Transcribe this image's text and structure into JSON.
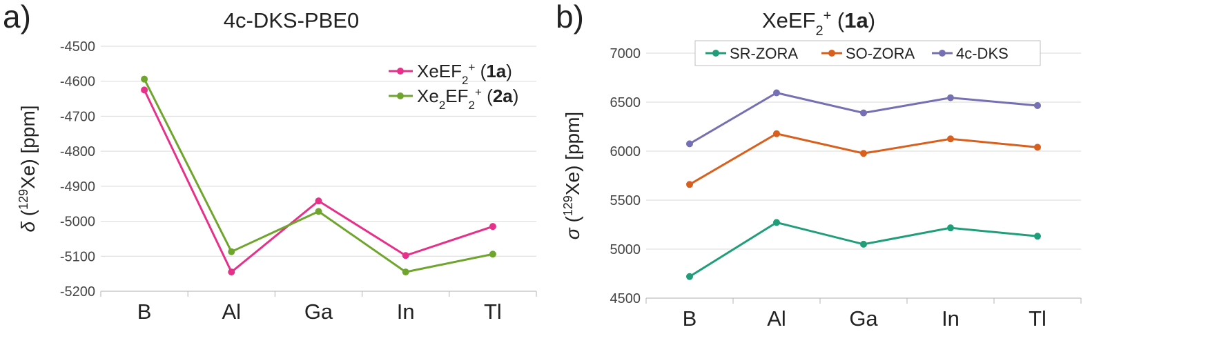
{
  "chart_data": [
    {
      "panel_label": "a)",
      "type": "line",
      "title": "4c-DKS-PBE0",
      "ylabel": {
        "prefix": "δ (",
        "sup": "129",
        "suffix": "Xe) [ppm]"
      },
      "categories": [
        "B",
        "Al",
        "Ga",
        "In",
        "Tl"
      ],
      "ylim": [
        -5200,
        -4500
      ],
      "yticks": [
        -4500,
        -4600,
        -4700,
        -4800,
        -4900,
        -5000,
        -5100,
        -5200
      ],
      "grid": true,
      "legend_position": "top-right",
      "series": [
        {
          "name": "XeEF2+ (1a)",
          "legend": [
            {
              "t": "XeEF"
            },
            {
              "t": "2",
              "sub": true
            },
            {
              "t": "+",
              "sup": true
            },
            {
              "t": " ("
            },
            {
              "t": "1a",
              "bold": true
            },
            {
              "t": ")"
            }
          ],
          "color": "#e6308a",
          "values": [
            -4625,
            -5145,
            -4942,
            -5098,
            -5015
          ]
        },
        {
          "name": "Xe2EF2+ (2a)",
          "legend": [
            {
              "t": "Xe"
            },
            {
              "t": "2",
              "sub": true
            },
            {
              "t": "EF"
            },
            {
              "t": "2",
              "sub": true
            },
            {
              "t": "+",
              "sup": true
            },
            {
              "t": " ("
            },
            {
              "t": "2a",
              "bold": true
            },
            {
              "t": ")"
            }
          ],
          "color": "#6fa52c",
          "values": [
            -4594,
            -5087,
            -4972,
            -5145,
            -5094
          ]
        }
      ]
    },
    {
      "panel_label": "b)",
      "type": "line",
      "title": "XeEF2+ (1a)",
      "title_runs": [
        {
          "t": "XeEF"
        },
        {
          "t": "2",
          "sub": true
        },
        {
          "t": "+",
          "sup": true
        },
        {
          "t": " ("
        },
        {
          "t": "1a",
          "bold": true
        },
        {
          "t": ")"
        }
      ],
      "ylabel": {
        "prefix": "σ (",
        "sup": "129",
        "suffix": "Xe) [ppm]"
      },
      "categories": [
        "B",
        "Al",
        "Ga",
        "In",
        "Tl"
      ],
      "ylim": [
        4500,
        7000
      ],
      "yticks": [
        4500,
        5000,
        5500,
        6000,
        6500,
        7000
      ],
      "grid": true,
      "legend_position": "top",
      "series": [
        {
          "name": "SR-ZORA",
          "color": "#1f9e79",
          "values": [
            4720,
            5272,
            5050,
            5217,
            5132
          ]
        },
        {
          "name": "SO-ZORA",
          "color": "#d95f1c",
          "values": [
            5660,
            6178,
            5977,
            6125,
            6040
          ]
        },
        {
          "name": "4c-DKS",
          "color": "#7570b3",
          "values": [
            6075,
            6595,
            6390,
            6545,
            6465
          ]
        }
      ]
    }
  ]
}
